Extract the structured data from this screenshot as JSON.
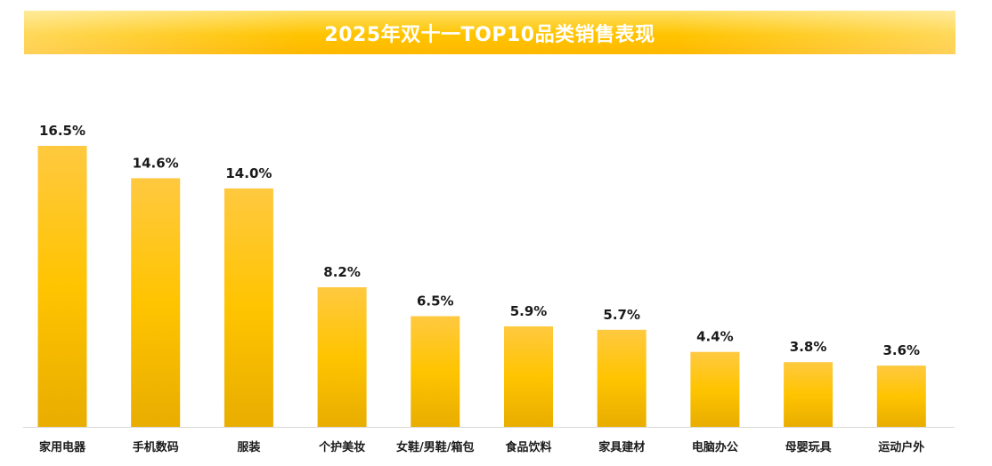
{
  "title": "2025年双十一TOP10品类销售表现",
  "colors": {
    "bar_top": "#ffc940",
    "bar_mid": "#ffc400",
    "bar_bottom": "#e8ad00",
    "axis": "#d9d9d9",
    "label": "#1a1a1a",
    "title_text": "#ffffff"
  },
  "chart_data": {
    "type": "bar",
    "title": "2025年双十一TOP10品类销售表现",
    "xlabel": "",
    "ylabel": "",
    "categories": [
      "家用电器",
      "手机数码",
      "服装",
      "个护美妆",
      "女鞋/男鞋/箱包",
      "食品饮料",
      "家具建材",
      "电脑办公",
      "母婴玩具",
      "运动户外"
    ],
    "values": [
      16.5,
      14.6,
      14.0,
      8.2,
      6.5,
      5.9,
      5.7,
      4.4,
      3.8,
      3.6
    ],
    "data_labels": [
      "16.5%",
      "14.6%",
      "14.0%",
      "8.2%",
      "6.5%",
      "5.9%",
      "5.7%",
      "4.4%",
      "3.8%",
      "3.6%"
    ],
    "ylim": [
      0,
      16.5
    ],
    "grid": false,
    "legend": "none"
  }
}
